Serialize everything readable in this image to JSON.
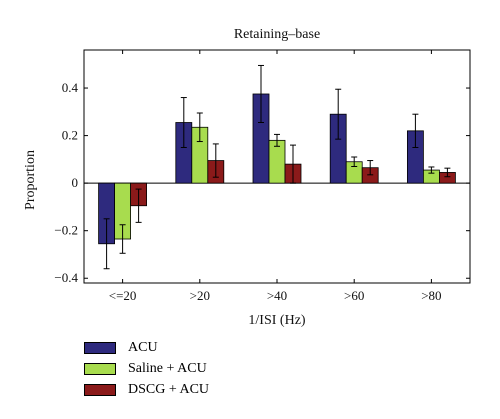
{
  "chart_data": {
    "type": "bar",
    "title": "Retaining–base",
    "xlabel": "1/ISI (Hz)",
    "ylabel": "Proportion",
    "categories": [
      "<=20",
      ">20",
      ">40",
      ">60",
      ">80"
    ],
    "ylim": [
      -0.42,
      0.56
    ],
    "yticks": [
      -0.4,
      -0.2,
      0,
      0.2,
      0.4
    ],
    "ytick_labels": [
      "−0.4",
      "−0.2",
      "0",
      "0.2",
      "0.4"
    ],
    "series": [
      {
        "name": "ACU",
        "color": "#2e2a7e",
        "values": [
          -0.255,
          0.255,
          0.375,
          0.29,
          0.22
        ],
        "errors": [
          0.105,
          0.105,
          0.12,
          0.105,
          0.07
        ]
      },
      {
        "name": "Saline + ACU",
        "color": "#a8dc4e",
        "values": [
          -0.235,
          0.235,
          0.18,
          0.09,
          0.055
        ],
        "errors": [
          0.06,
          0.06,
          0.025,
          0.02,
          0.013
        ]
      },
      {
        "name": "DSCG + ACU",
        "color": "#8b1a1a",
        "values": [
          -0.095,
          0.095,
          0.08,
          0.065,
          0.045
        ],
        "errors": [
          0.07,
          0.07,
          0.08,
          0.03,
          0.018
        ]
      }
    ],
    "grid": false,
    "legend_position": "below"
  }
}
